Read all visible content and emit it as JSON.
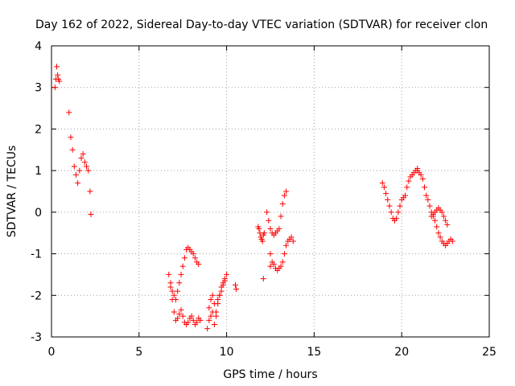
{
  "chart_data": {
    "type": "scatter",
    "title": "Day 162 of 2022, Sidereal Day-to-day VTEC variation (SDTVAR) for receiver clon",
    "xlabel": "GPS time / hours",
    "ylabel": "SDTVAR / TECUs",
    "xlim": [
      0,
      25
    ],
    "ylim": [
      -3,
      4
    ],
    "xticks": [
      "0",
      "5",
      "10",
      "15",
      "20",
      "25"
    ],
    "yticks": [
      "-3",
      "-2",
      "-1",
      "0",
      "1",
      "2",
      "3",
      "4"
    ],
    "grid": true,
    "marker": "+",
    "color": "#ff0000",
    "segments": [
      {
        "name": "seg-a",
        "x": [
          0.2,
          0.25,
          0.3,
          0.35,
          0.4,
          0.45
        ],
        "y": [
          3.0,
          3.2,
          3.5,
          3.3,
          3.2,
          3.15
        ]
      },
      {
        "name": "seg-b",
        "x": [
          1.0,
          1.1,
          1.2,
          1.3,
          1.4,
          1.5,
          1.6,
          1.7,
          1.8,
          1.9,
          2.0,
          2.1,
          2.2,
          2.25
        ],
        "y": [
          2.4,
          1.8,
          1.5,
          1.1,
          0.9,
          0.7,
          1.0,
          1.3,
          1.4,
          1.2,
          1.1,
          1.0,
          0.5,
          -0.05
        ]
      },
      {
        "name": "seg-c",
        "x": [
          6.7,
          6.8,
          6.9,
          7.0,
          7.1,
          7.2,
          7.3,
          7.4,
          7.5,
          7.6,
          7.7,
          7.8,
          7.9,
          8.0,
          8.1,
          8.2,
          8.3,
          8.4,
          8.5
        ],
        "y": [
          -1.5,
          -1.8,
          -2.1,
          -2.4,
          -2.6,
          -2.55,
          -2.45,
          -2.35,
          -2.5,
          -2.65,
          -2.7,
          -2.65,
          -2.55,
          -2.5,
          -2.6,
          -2.7,
          -2.65,
          -2.55,
          -2.6
        ]
      },
      {
        "name": "seg-d",
        "x": [
          6.8,
          6.9,
          7.0,
          7.1,
          7.2,
          7.3,
          7.4,
          7.5,
          7.6,
          7.7,
          7.8,
          7.9,
          8.0,
          8.1,
          8.2,
          8.3,
          8.4
        ],
        "y": [
          -1.7,
          -1.9,
          -2.0,
          -2.1,
          -1.9,
          -1.7,
          -1.5,
          -1.3,
          -1.1,
          -0.9,
          -0.85,
          -0.9,
          -0.95,
          -1.0,
          -1.1,
          -1.2,
          -1.25
        ]
      },
      {
        "name": "seg-e",
        "x": [
          8.9,
          9.0,
          9.1,
          9.2,
          9.3,
          9.4,
          9.5,
          9.6,
          9.7,
          9.8,
          9.9,
          10.0
        ],
        "y": [
          -2.8,
          -2.6,
          -2.5,
          -2.4,
          -2.7,
          -2.5,
          -2.2,
          -2.0,
          -1.8,
          -1.7,
          -1.6,
          -1.5
        ]
      },
      {
        "name": "seg-f",
        "x": [
          9.0,
          9.1,
          9.2,
          9.3,
          9.4,
          9.5,
          9.6,
          9.7,
          9.8,
          9.9
        ],
        "y": [
          -2.3,
          -2.1,
          -2.0,
          -2.2,
          -2.4,
          -2.1,
          -2.0,
          -1.9,
          -1.75,
          -1.65
        ]
      },
      {
        "name": "seg-g",
        "x": [
          10.5,
          10.55
        ],
        "y": [
          -1.75,
          -1.85
        ]
      },
      {
        "name": "seg-h",
        "x": [
          11.8,
          11.85,
          11.9,
          11.95,
          12.0,
          12.05,
          12.1,
          12.15
        ],
        "y": [
          -0.35,
          -0.4,
          -0.5,
          -0.6,
          -0.65,
          -0.7,
          -0.55,
          -0.5
        ]
      },
      {
        "name": "seg-i",
        "x": [
          12.3,
          12.4,
          12.5,
          12.6,
          12.7,
          12.8,
          12.9,
          13.0,
          13.1,
          13.2,
          13.3,
          13.4
        ],
        "y": [
          0.0,
          -0.2,
          -0.4,
          -0.5,
          -0.55,
          -0.5,
          -0.45,
          -0.4,
          -0.1,
          0.2,
          0.4,
          0.5
        ]
      },
      {
        "name": "seg-j",
        "x": [
          12.5,
          12.6,
          12.7,
          12.8,
          12.9,
          13.0,
          13.1,
          13.2,
          13.3,
          13.4,
          13.5,
          13.6,
          13.7,
          13.8
        ],
        "y": [
          -1.3,
          -1.2,
          -1.25,
          -1.35,
          -1.4,
          -1.35,
          -1.3,
          -1.2,
          -1.0,
          -0.8,
          -0.7,
          -0.65,
          -0.6,
          -0.7
        ]
      },
      {
        "name": "seg-k",
        "x": [
          12.1,
          12.5
        ],
        "y": [
          -1.6,
          -1.0
        ]
      },
      {
        "name": "seg-l",
        "x": [
          18.9,
          19.0,
          19.1,
          19.2,
          19.3,
          19.4,
          19.5,
          19.6,
          19.7,
          19.8,
          19.9,
          20.0,
          20.1,
          20.2,
          20.3,
          20.4,
          20.5,
          20.6,
          20.7,
          20.8,
          20.9
        ],
        "y": [
          0.7,
          0.6,
          0.45,
          0.3,
          0.15,
          0.0,
          -0.15,
          -0.2,
          -0.15,
          0.0,
          0.15,
          0.3,
          0.35,
          0.4,
          0.6,
          0.75,
          0.85,
          0.9,
          0.95,
          1.0,
          1.05
        ]
      },
      {
        "name": "seg-m",
        "x": [
          20.9,
          21.0,
          21.1,
          21.2,
          21.3,
          21.4,
          21.5,
          21.6,
          21.7,
          21.8,
          21.9,
          22.0,
          22.1,
          22.2,
          22.3,
          22.4,
          22.5,
          22.6,
          22.7,
          22.8,
          22.9
        ],
        "y": [
          1.0,
          0.95,
          0.9,
          0.8,
          0.6,
          0.4,
          0.3,
          0.15,
          0.0,
          -0.1,
          -0.2,
          -0.35,
          -0.5,
          -0.6,
          -0.7,
          -0.75,
          -0.8,
          -0.75,
          -0.7,
          -0.65,
          -0.7
        ]
      },
      {
        "name": "seg-n",
        "x": [
          21.7,
          21.8,
          21.9,
          22.0,
          22.1,
          22.2,
          22.3,
          22.4,
          22.5,
          22.6
        ],
        "y": [
          -0.1,
          -0.05,
          0.0,
          0.05,
          0.1,
          0.05,
          0.0,
          -0.1,
          -0.2,
          -0.3
        ]
      }
    ]
  }
}
